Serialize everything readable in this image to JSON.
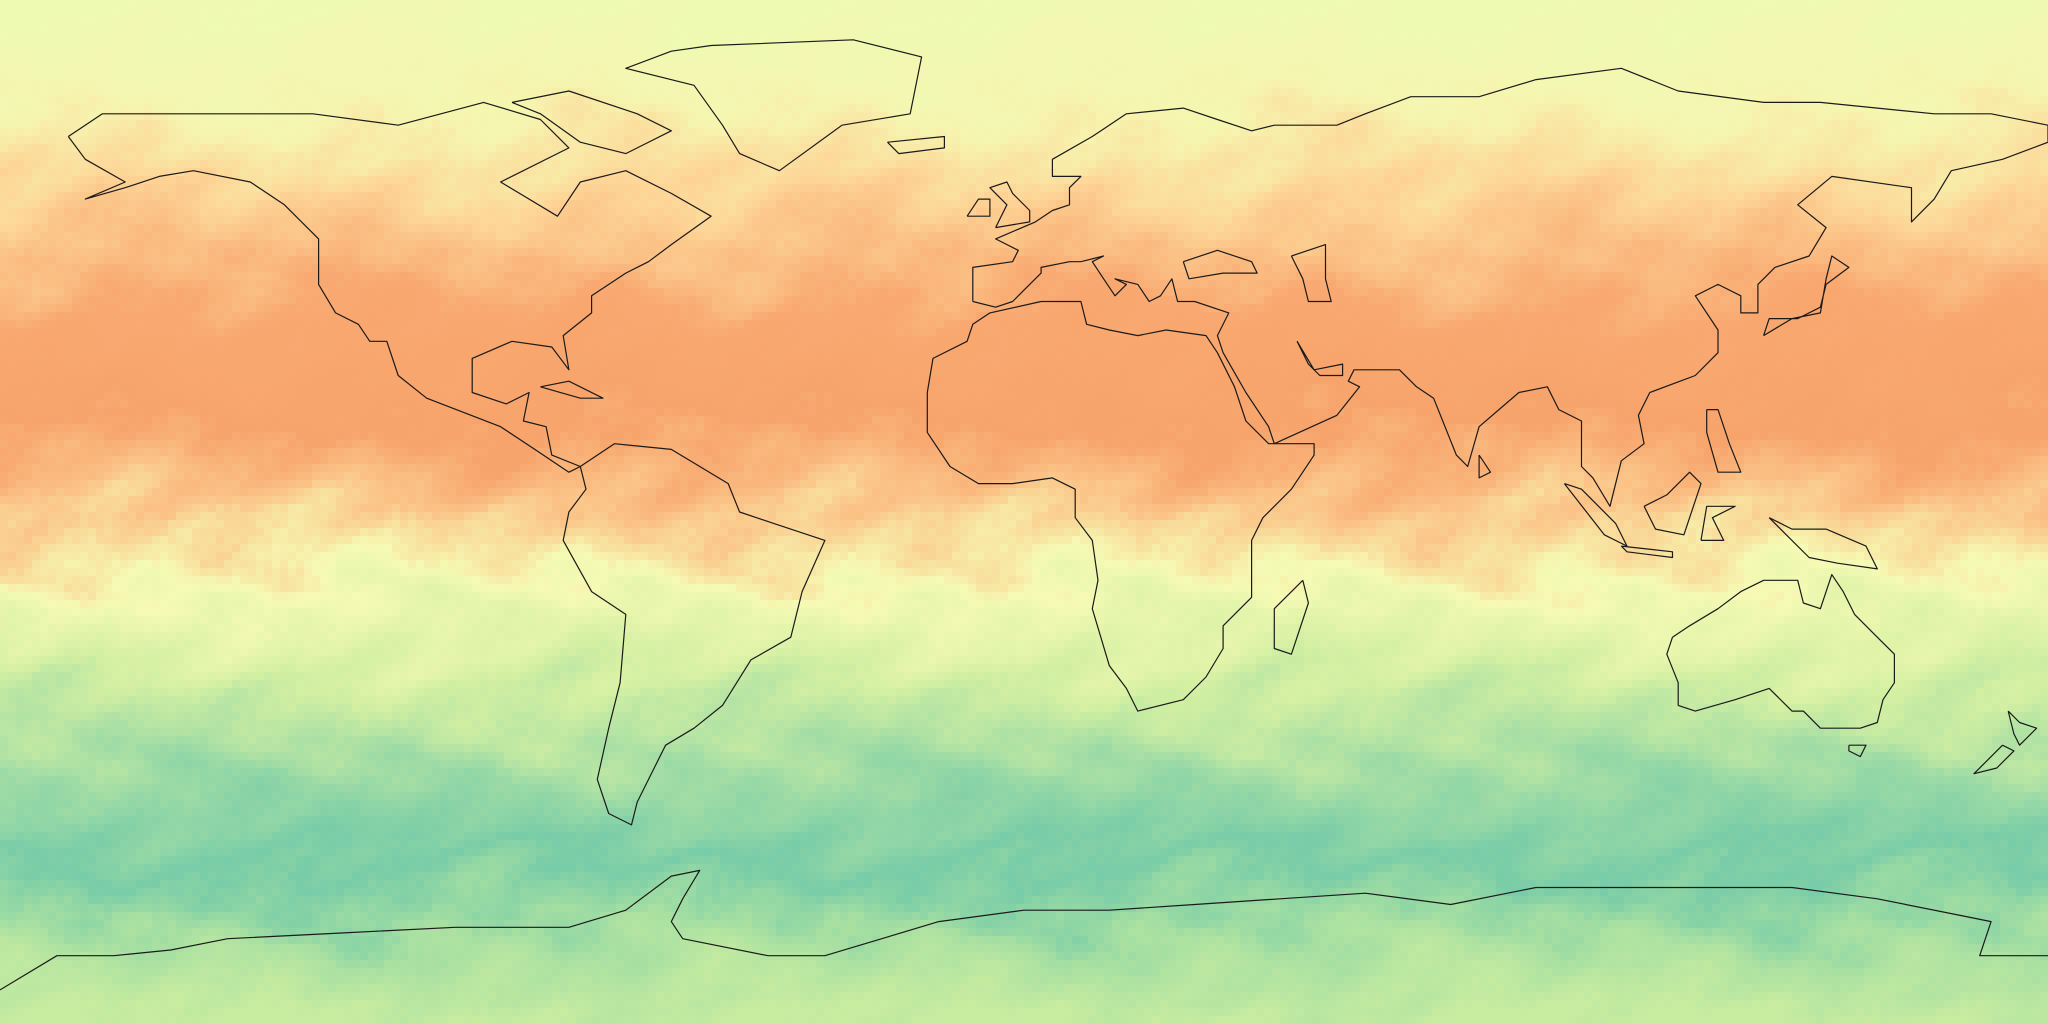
{
  "map": {
    "projection": "equirectangular",
    "extent": {
      "lon": [
        -180,
        180
      ],
      "lat": [
        -90,
        90
      ]
    },
    "coastlines": true,
    "colormap": [
      {
        "lat": 90,
        "color": "#eefab2"
      },
      {
        "lat": 70,
        "color": "#f6f5b0"
      },
      {
        "lat": 55,
        "color": "#fdd496"
      },
      {
        "lat": 35,
        "color": "#f8a870"
      },
      {
        "lat": 15,
        "color": "#f7a46c"
      },
      {
        "lat": 2,
        "color": "#fbc488"
      },
      {
        "lat": -12,
        "color": "#f6fab4"
      },
      {
        "lat": -30,
        "color": "#d2efa2"
      },
      {
        "lat": -50,
        "color": "#96d8a6"
      },
      {
        "lat": -62,
        "color": "#78cca8"
      },
      {
        "lat": -75,
        "color": "#a8e0a2"
      },
      {
        "lat": -90,
        "color": "#c8eca0"
      }
    ],
    "coastline_color": "#1a1a1a"
  }
}
